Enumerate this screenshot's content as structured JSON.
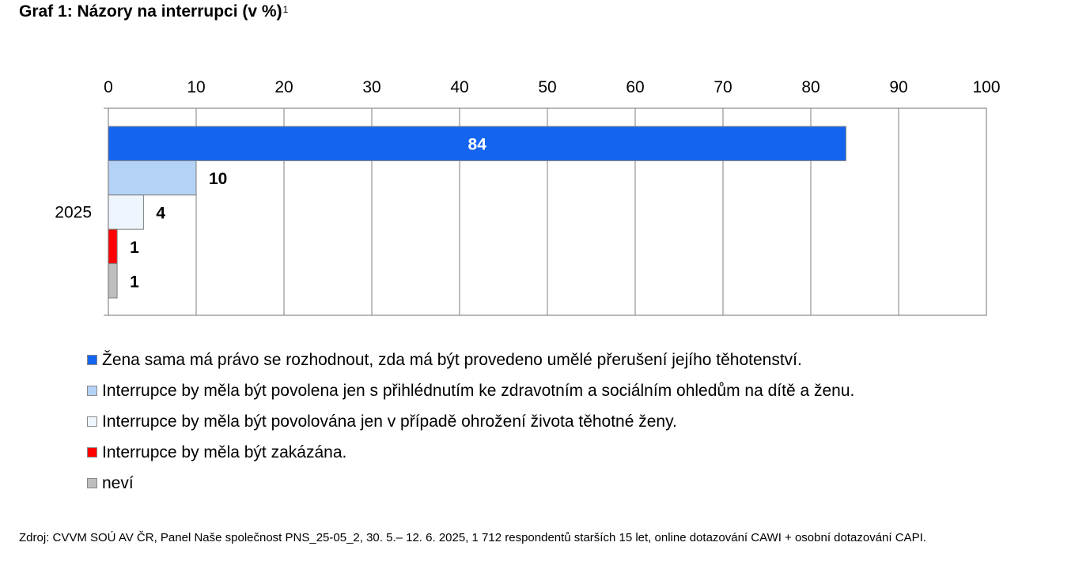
{
  "title": "Graf 1: Názory na interrupci (v %)",
  "title_footnote_mark": "1",
  "source": "Zdroj: CVVM SOÚ AV ČR, Panel Naše společnost PNS_25-05_2, 30. 5.– 12. 6. 2025, 1 712 respondentů starších 15 let, online dotazování CAWI + osobní dotazování CAPI.",
  "chart_data": {
    "type": "bar",
    "orientation": "horizontal",
    "categories": [
      "2025"
    ],
    "xlim": [
      0,
      100
    ],
    "x_ticks": [
      "0",
      "10",
      "20",
      "30",
      "40",
      "50",
      "60",
      "70",
      "80",
      "90",
      "100"
    ],
    "x_axis_position": "top",
    "grid": true,
    "legend_position": "bottom",
    "series": [
      {
        "name": "Žena sama má právo se rozhodnout, zda má být provedeno umělé přerušení jejího těhotenství.",
        "values": [
          84
        ],
        "color": "#1464f0",
        "label_color": "#ffffff",
        "label_inside": true
      },
      {
        "name": "Interrupce by měla být povolena jen s přihlédnutím ke zdravotním a sociálním ohledům na dítě a ženu.",
        "values": [
          10
        ],
        "color": "#b4d2f5",
        "label_color": "#000000",
        "label_inside": false
      },
      {
        "name": "Interrupce by měla být povolována jen v případě ohrožení života těhotné ženy.",
        "values": [
          4
        ],
        "color": "#eef5fd",
        "label_color": "#000000",
        "label_inside": false
      },
      {
        "name": "Interrupce by měla být zakázána.",
        "values": [
          1
        ],
        "color": "#ff0000",
        "label_color": "#000000",
        "label_inside": false
      },
      {
        "name": "neví",
        "values": [
          1
        ],
        "color": "#bebebe",
        "label_color": "#000000",
        "label_inside": false
      }
    ]
  }
}
